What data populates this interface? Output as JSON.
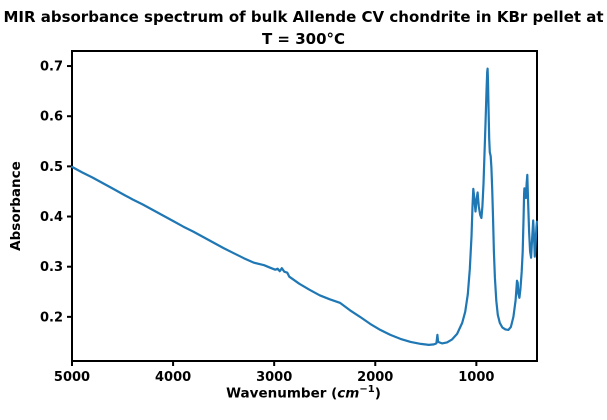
{
  "chart_data": {
    "type": "line",
    "title_line1": "MIR absorbance spectrum of bulk Allende CV chondrite in KBr pellet at",
    "title_line2": "T = 300°C",
    "ylabel": "Absorbance",
    "xlabel_prefix": "Wavenumber (",
    "xlabel_unit": "cm",
    "xlabel_exp": "−1",
    "xlabel_suffix": ")",
    "x_axis_inverted": true,
    "xlim": [
      5000,
      400
    ],
    "ylim": [
      0.112,
      0.73
    ],
    "xticks": [
      5000,
      4000,
      3000,
      2000,
      1000
    ],
    "yticks": [
      0.2,
      0.3,
      0.4,
      0.5,
      0.6,
      0.7
    ],
    "grid": false,
    "legend": null,
    "line_color": "#1f77b4",
    "axis_color": "#000000",
    "series": [
      {
        "name": "absorbance-spectrum",
        "points": [
          [
            5000,
            0.499
          ],
          [
            4900,
            0.488
          ],
          [
            4800,
            0.478
          ],
          [
            4700,
            0.467
          ],
          [
            4600,
            0.456
          ],
          [
            4500,
            0.445
          ],
          [
            4400,
            0.434
          ],
          [
            4300,
            0.424
          ],
          [
            4200,
            0.413
          ],
          [
            4100,
            0.402
          ],
          [
            4000,
            0.391
          ],
          [
            3900,
            0.38
          ],
          [
            3800,
            0.37
          ],
          [
            3700,
            0.359
          ],
          [
            3600,
            0.348
          ],
          [
            3500,
            0.337
          ],
          [
            3400,
            0.327
          ],
          [
            3300,
            0.317
          ],
          [
            3200,
            0.308
          ],
          [
            3100,
            0.303
          ],
          [
            3040,
            0.298
          ],
          [
            2990,
            0.294
          ],
          [
            2965,
            0.296
          ],
          [
            2945,
            0.291
          ],
          [
            2925,
            0.297
          ],
          [
            2900,
            0.29
          ],
          [
            2870,
            0.288
          ],
          [
            2850,
            0.28
          ],
          [
            2750,
            0.266
          ],
          [
            2650,
            0.254
          ],
          [
            2550,
            0.243
          ],
          [
            2450,
            0.235
          ],
          [
            2350,
            0.228
          ],
          [
            2250,
            0.213
          ],
          [
            2150,
            0.2
          ],
          [
            2050,
            0.186
          ],
          [
            1950,
            0.174
          ],
          [
            1850,
            0.164
          ],
          [
            1750,
            0.156
          ],
          [
            1650,
            0.15
          ],
          [
            1550,
            0.146
          ],
          [
            1470,
            0.144
          ],
          [
            1420,
            0.145
          ],
          [
            1395,
            0.147
          ],
          [
            1385,
            0.164
          ],
          [
            1378,
            0.15
          ],
          [
            1340,
            0.147
          ],
          [
            1290,
            0.149
          ],
          [
            1240,
            0.155
          ],
          [
            1190,
            0.166
          ],
          [
            1140,
            0.188
          ],
          [
            1110,
            0.21
          ],
          [
            1085,
            0.245
          ],
          [
            1065,
            0.295
          ],
          [
            1048,
            0.36
          ],
          [
            1038,
            0.42
          ],
          [
            1030,
            0.455
          ],
          [
            1020,
            0.437
          ],
          [
            1008,
            0.41
          ],
          [
            997,
            0.436
          ],
          [
            988,
            0.448
          ],
          [
            976,
            0.42
          ],
          [
            962,
            0.403
          ],
          [
            950,
            0.397
          ],
          [
            940,
            0.42
          ],
          [
            929,
            0.465
          ],
          [
            919,
            0.525
          ],
          [
            909,
            0.585
          ],
          [
            900,
            0.65
          ],
          [
            893,
            0.688
          ],
          [
            889,
            0.695
          ],
          [
            885,
            0.67
          ],
          [
            879,
            0.61
          ],
          [
            873,
            0.555
          ],
          [
            867,
            0.528
          ],
          [
            858,
            0.52
          ],
          [
            851,
            0.498
          ],
          [
            843,
            0.455
          ],
          [
            835,
            0.4
          ],
          [
            826,
            0.33
          ],
          [
            816,
            0.278
          ],
          [
            803,
            0.232
          ],
          [
            788,
            0.204
          ],
          [
            768,
            0.188
          ],
          [
            743,
            0.179
          ],
          [
            713,
            0.175
          ],
          [
            683,
            0.174
          ],
          [
            658,
            0.18
          ],
          [
            633,
            0.2
          ],
          [
            612,
            0.233
          ],
          [
            598,
            0.272
          ],
          [
            591,
            0.268
          ],
          [
            584,
            0.246
          ],
          [
            574,
            0.238
          ],
          [
            564,
            0.255
          ],
          [
            551,
            0.29
          ],
          [
            541,
            0.33
          ],
          [
            533,
            0.4
          ],
          [
            528,
            0.445
          ],
          [
            525,
            0.456
          ],
          [
            518,
            0.44
          ],
          [
            510,
            0.437
          ],
          [
            503,
            0.465
          ],
          [
            496,
            0.483
          ],
          [
            488,
            0.43
          ],
          [
            478,
            0.37
          ],
          [
            468,
            0.33
          ],
          [
            458,
            0.318
          ],
          [
            448,
            0.355
          ],
          [
            438,
            0.392
          ],
          [
            430,
            0.36
          ],
          [
            422,
            0.32
          ],
          [
            412,
            0.355
          ],
          [
            405,
            0.38
          ],
          [
            400,
            0.39
          ]
        ]
      }
    ]
  }
}
